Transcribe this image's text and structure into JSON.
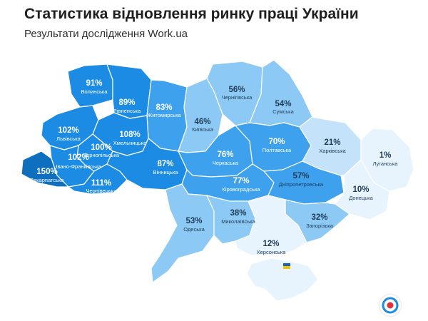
{
  "title": "Статистика відновлення ринку праці України",
  "subtitle": "Результати дослідження Work.ua",
  "logo_icon": "work-ua-logo",
  "flag_icon": "ukraine-flag-icon",
  "colors": {
    "darkest": "#0f6fbf",
    "dark": "#1b8be3",
    "mid": "#3ea1ee",
    "light": "#8ccaf5",
    "lighter": "#c4e3fa",
    "lightest": "#e8f4fd",
    "logo_red": "#e2313b",
    "logo_blue": "#1b8be3"
  },
  "regions": [
    {
      "name": "Волинська",
      "value": "91%"
    },
    {
      "name": "Рівненська",
      "value": "89%"
    },
    {
      "name": "Житомирська",
      "value": "83%"
    },
    {
      "name": "Київська",
      "value": "46%"
    },
    {
      "name": "Чернігівська",
      "value": "56%"
    },
    {
      "name": "Сумська",
      "value": "54%"
    },
    {
      "name": "Львівська",
      "value": "102%"
    },
    {
      "name": "Хмельницька",
      "value": "108%"
    },
    {
      "name": "Тернопільська",
      "value": "100%"
    },
    {
      "name": "Івано-Франківська",
      "value": "102%"
    },
    {
      "name": "Закарпатська",
      "value": "150%"
    },
    {
      "name": "Чернівецька",
      "value": "111%"
    },
    {
      "name": "Вінницька",
      "value": "87%"
    },
    {
      "name": "Черкаська",
      "value": "76%"
    },
    {
      "name": "Полтавська",
      "value": "70%"
    },
    {
      "name": "Харківська",
      "value": "21%"
    },
    {
      "name": "Луганська",
      "value": "1%"
    },
    {
      "name": "Кіровоградська",
      "value": "77%"
    },
    {
      "name": "Дніпропетровська",
      "value": "57%"
    },
    {
      "name": "Донецька",
      "value": "10%"
    },
    {
      "name": "Одеська",
      "value": "53%"
    },
    {
      "name": "Миколаївська",
      "value": "38%"
    },
    {
      "name": "Запорізька",
      "value": "32%"
    },
    {
      "name": "Херсонська",
      "value": "12%"
    }
  ]
}
